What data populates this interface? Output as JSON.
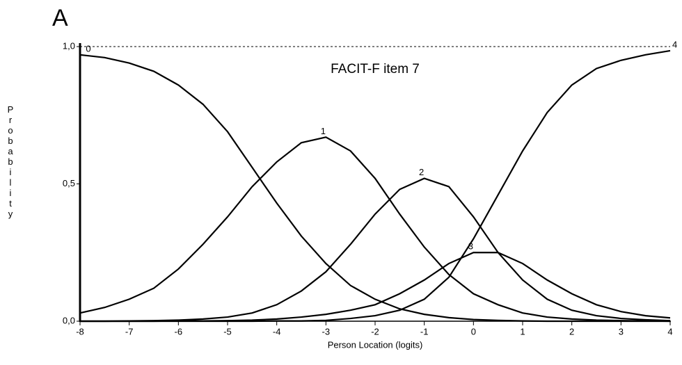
{
  "chart_data": {
    "type": "line",
    "panel_label": "A",
    "title": "FACIT-F item 7",
    "x_label": "Person Location (logits)",
    "y_label": "Probability",
    "x": [
      -8,
      -7.5,
      -7,
      -6.5,
      -6,
      -5.5,
      -5,
      -4.5,
      -4,
      -3.5,
      -3,
      -2.5,
      -2,
      -1.5,
      -1,
      -0.5,
      0,
      0.5,
      1,
      1.5,
      2,
      2.5,
      3,
      3.5,
      4
    ],
    "series": [
      {
        "name": "0",
        "color": "#000000",
        "values": [
          0.97,
          0.96,
          0.94,
          0.91,
          0.86,
          0.79,
          0.69,
          0.56,
          0.43,
          0.31,
          0.21,
          0.13,
          0.08,
          0.045,
          0.025,
          0.013,
          0.006,
          0.003,
          0.001,
          0,
          0,
          0,
          0,
          0,
          0
        ]
      },
      {
        "name": "1",
        "color": "#000000",
        "values": [
          0.03,
          0.05,
          0.08,
          0.12,
          0.19,
          0.28,
          0.38,
          0.49,
          0.58,
          0.65,
          0.67,
          0.62,
          0.52,
          0.39,
          0.27,
          0.17,
          0.1,
          0.06,
          0.03,
          0.015,
          0.008,
          0.004,
          0.002,
          0.001,
          0
        ]
      },
      {
        "name": "2",
        "color": "#000000",
        "values": [
          0,
          0,
          0.001,
          0.002,
          0.004,
          0.008,
          0.015,
          0.03,
          0.06,
          0.11,
          0.18,
          0.28,
          0.39,
          0.48,
          0.52,
          0.49,
          0.38,
          0.25,
          0.15,
          0.08,
          0.04,
          0.02,
          0.01,
          0.005,
          0.002
        ]
      },
      {
        "name": "3",
        "color": "#000000",
        "values": [
          0,
          0,
          0,
          0,
          0.001,
          0.001,
          0.002,
          0.004,
          0.008,
          0.015,
          0.025,
          0.04,
          0.06,
          0.1,
          0.15,
          0.21,
          0.25,
          0.25,
          0.21,
          0.15,
          0.1,
          0.06,
          0.035,
          0.02,
          0.012
        ]
      },
      {
        "name": "4",
        "color": "#000000",
        "values": [
          0,
          0,
          0,
          0,
          0,
          0,
          0,
          0,
          0.001,
          0.001,
          0.003,
          0.01,
          0.02,
          0.04,
          0.08,
          0.16,
          0.3,
          0.46,
          0.62,
          0.76,
          0.86,
          0.92,
          0.95,
          0.97,
          0.985
        ]
      }
    ],
    "xlim": [
      -8,
      4
    ],
    "ylim": [
      0,
      1
    ],
    "xticks": [
      -8,
      -7,
      -6,
      -5,
      -4,
      -3,
      -2,
      -1,
      0,
      1,
      2,
      3,
      4
    ],
    "yticks": [
      {
        "value": 0,
        "label": "0,0"
      },
      {
        "value": 0.5,
        "label": "0,5"
      },
      {
        "value": 1,
        "label": "1,0"
      }
    ],
    "grid": false
  }
}
